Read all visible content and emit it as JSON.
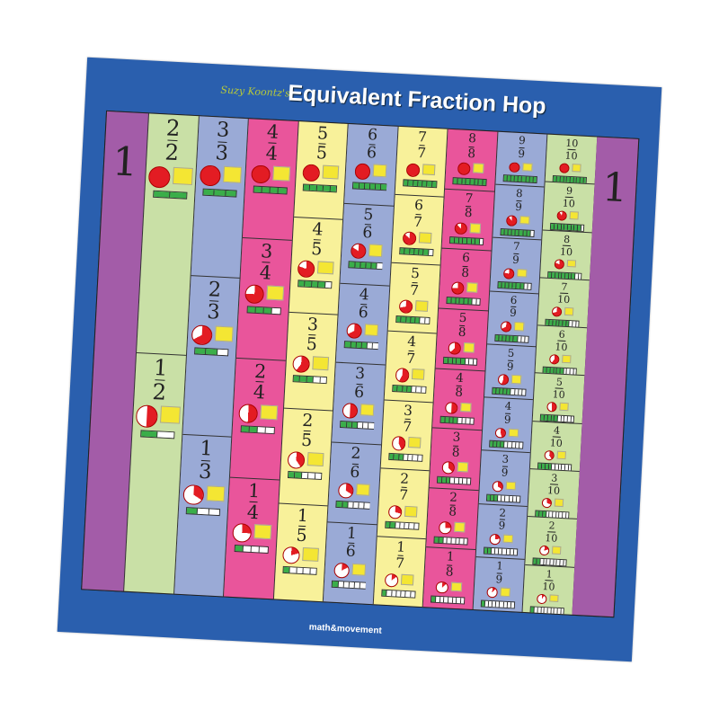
{
  "brand": "Suzy Koontz's",
  "title": "Equivalent Fraction Hop",
  "logo": "math&movement",
  "whole_label": "1",
  "colors": {
    "background": "#2a5fae",
    "whole": "#a35ca8",
    "pie": "#e31c23",
    "rect": "#f4e633",
    "bar": "#3aae49"
  },
  "columns": [
    {
      "denominator": 2,
      "color": "#c9e0a6",
      "fractions": [
        [
          "2",
          "2"
        ],
        [
          "1",
          "2"
        ]
      ]
    },
    {
      "denominator": 3,
      "color": "#9aaad6",
      "fractions": [
        [
          "3",
          "3"
        ],
        [
          "2",
          "3"
        ],
        [
          "1",
          "3"
        ]
      ]
    },
    {
      "denominator": 4,
      "color": "#e9559b",
      "fractions": [
        [
          "4",
          "4"
        ],
        [
          "3",
          "4"
        ],
        [
          "2",
          "4"
        ],
        [
          "1",
          "4"
        ]
      ]
    },
    {
      "denominator": 5,
      "color": "#f8f19a",
      "fractions": [
        [
          "5",
          "5"
        ],
        [
          "4",
          "5"
        ],
        [
          "3",
          "5"
        ],
        [
          "2",
          "5"
        ],
        [
          "1",
          "5"
        ]
      ]
    },
    {
      "denominator": 6,
      "color": "#9aaad6",
      "fractions": [
        [
          "6",
          "6"
        ],
        [
          "5",
          "6"
        ],
        [
          "4",
          "6"
        ],
        [
          "3",
          "6"
        ],
        [
          "2",
          "6"
        ],
        [
          "1",
          "6"
        ]
      ]
    },
    {
      "denominator": 7,
      "color": "#f8f19a",
      "fractions": [
        [
          "7",
          "7"
        ],
        [
          "6",
          "7"
        ],
        [
          "5",
          "7"
        ],
        [
          "4",
          "7"
        ],
        [
          "3",
          "7"
        ],
        [
          "2",
          "7"
        ],
        [
          "1",
          "7"
        ]
      ]
    },
    {
      "denominator": 8,
      "color": "#e9559b",
      "fractions": [
        [
          "8",
          "8"
        ],
        [
          "7",
          "8"
        ],
        [
          "6",
          "8"
        ],
        [
          "5",
          "8"
        ],
        [
          "4",
          "8"
        ],
        [
          "3",
          "8"
        ],
        [
          "2",
          "8"
        ],
        [
          "1",
          "8"
        ]
      ]
    },
    {
      "denominator": 9,
      "color": "#9aaad6",
      "fractions": [
        [
          "9",
          "9"
        ],
        [
          "8",
          "9"
        ],
        [
          "7",
          "9"
        ],
        [
          "6",
          "9"
        ],
        [
          "5",
          "9"
        ],
        [
          "4",
          "9"
        ],
        [
          "3",
          "9"
        ],
        [
          "2",
          "9"
        ],
        [
          "1",
          "9"
        ]
      ]
    },
    {
      "denominator": 10,
      "color": "#c9e0a6",
      "fractions": [
        [
          "10",
          "10"
        ],
        [
          "9",
          "10"
        ],
        [
          "8",
          "10"
        ],
        [
          "7",
          "10"
        ],
        [
          "6",
          "10"
        ],
        [
          "5",
          "10"
        ],
        [
          "4",
          "10"
        ],
        [
          "3",
          "10"
        ],
        [
          "2",
          "10"
        ],
        [
          "1",
          "10"
        ]
      ]
    }
  ]
}
